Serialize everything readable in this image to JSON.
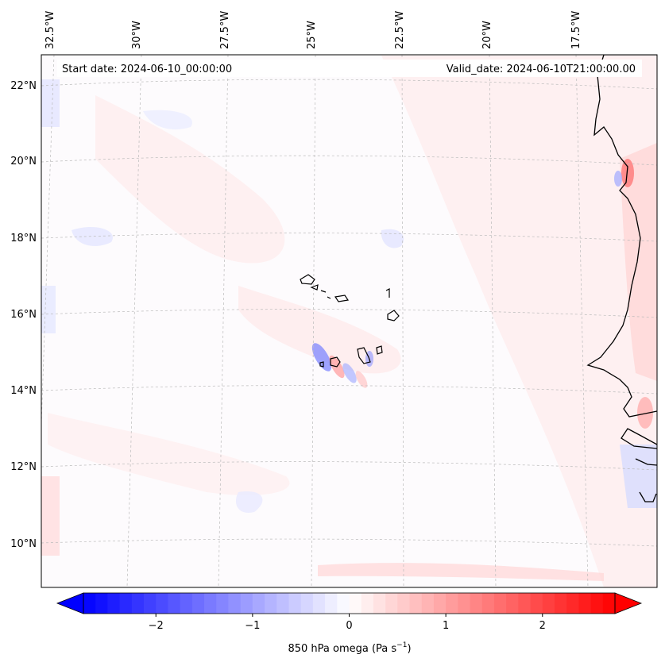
{
  "map": {
    "start_date": "Start date: 2024-06-10_00:00:00",
    "valid_date": "Valid_date: 2024-06-10T21:00:00.00",
    "lon_labels": [
      "32.5°W",
      "30°W",
      "27.5°W",
      "25°W",
      "22.5°W",
      "20°W",
      "17.5°W"
    ],
    "lat_labels": [
      "22°N",
      "20°N",
      "18°N",
      "16°N",
      "14°N",
      "12°N",
      "10°N"
    ],
    "field": "850 hPa omega",
    "colors": {
      "negative": "#0000ff",
      "zero": "#ffffff",
      "positive": "#ff0000",
      "coast": "#000000",
      "grid": "#bbbbbb"
    }
  },
  "colorbar": {
    "label": "850 hPa omega (Pa s",
    "label_sup": "−1",
    "label_close": ")",
    "range": [
      -2.75,
      2.75
    ],
    "ticks": [
      {
        "value": -2,
        "label": "−2"
      },
      {
        "value": -1,
        "label": "−1"
      },
      {
        "value": 0,
        "label": "0"
      },
      {
        "value": 1,
        "label": "1"
      },
      {
        "value": 2,
        "label": "2"
      }
    ],
    "levels": 44
  }
}
